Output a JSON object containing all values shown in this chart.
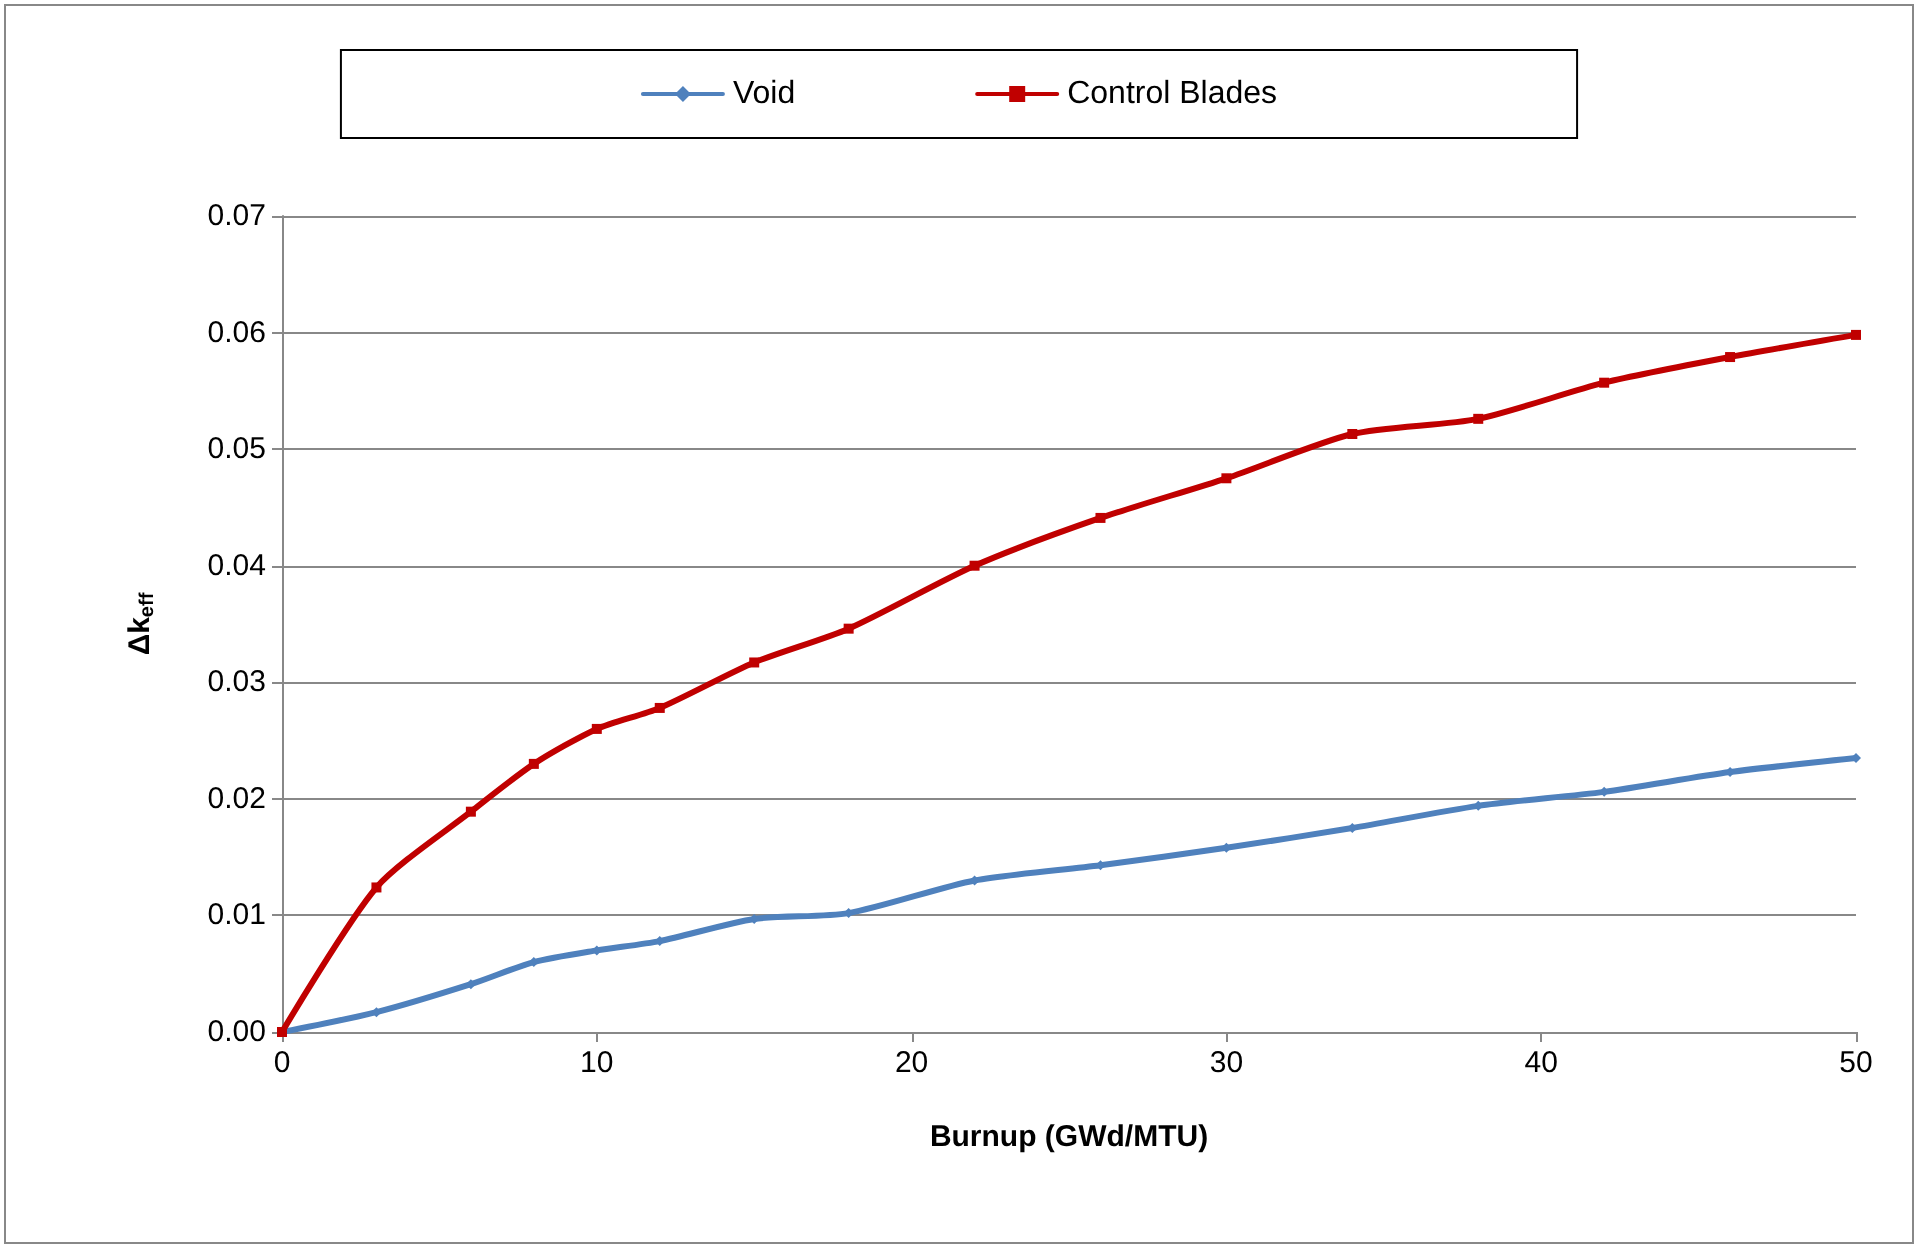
{
  "chart_data": {
    "type": "line",
    "xlabel": "Burnup (GWd/MTU)",
    "ylabel": "Δk$_{eff}$",
    "x": [
      0,
      3,
      6,
      8,
      10,
      12,
      15,
      18,
      22,
      26,
      30,
      34,
      38,
      42,
      46,
      50
    ],
    "series": [
      {
        "name": "Void",
        "color": "#4f81bd",
        "marker": "diamond",
        "values": [
          0,
          0.0017,
          0.0041,
          0.006,
          0.007,
          0.0078,
          0.0097,
          0.0102,
          0.013,
          0.0143,
          0.0158,
          0.0175,
          0.0194,
          0.0206,
          0.0223,
          0.0235
        ]
      },
      {
        "name": "Control Blades",
        "color": "#c00000",
        "marker": "square",
        "values": [
          0,
          0.0124,
          0.0189,
          0.023,
          0.026,
          0.0278,
          0.0317,
          0.0346,
          0.04,
          0.0441,
          0.0475,
          0.0513,
          0.0526,
          0.0557,
          0.0579,
          0.0598
        ]
      }
    ],
    "xlim": [
      0,
      50
    ],
    "xticks": [
      0,
      10,
      20,
      30,
      40,
      50
    ],
    "ylim": [
      0,
      0.07
    ],
    "yticks": [
      {
        "value": 0,
        "label": "0.00"
      },
      0.01,
      0.02,
      0.03,
      0.04,
      0.05,
      0.06,
      0.07
    ],
    "grid": "y",
    "legend": "top",
    "line_style": "solid"
  }
}
